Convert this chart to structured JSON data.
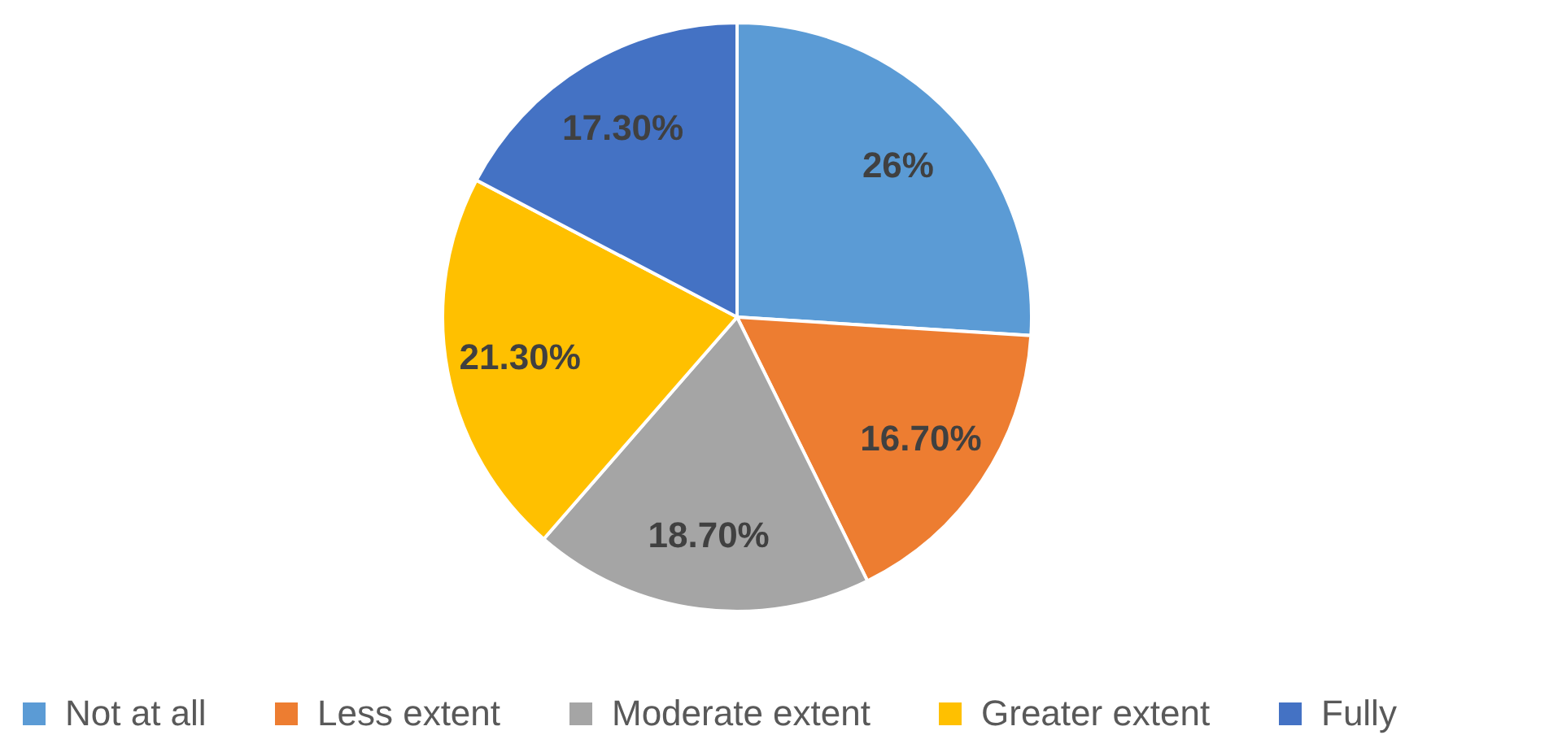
{
  "chart_data": {
    "type": "pie",
    "categories": [
      "Not at all",
      "Less extent",
      "Moderate extent",
      "Greater extent",
      "Fully"
    ],
    "values": [
      26,
      16.7,
      18.7,
      21.3,
      17.3
    ],
    "value_labels": [
      "26%",
      "16.70%",
      "18.70%",
      "21.30%",
      "17.30%"
    ],
    "colors": [
      "#5b9bd5",
      "#ed7d31",
      "#a5a5a5",
      "#ffc000",
      "#4472c4"
    ],
    "legend": "bottom"
  }
}
